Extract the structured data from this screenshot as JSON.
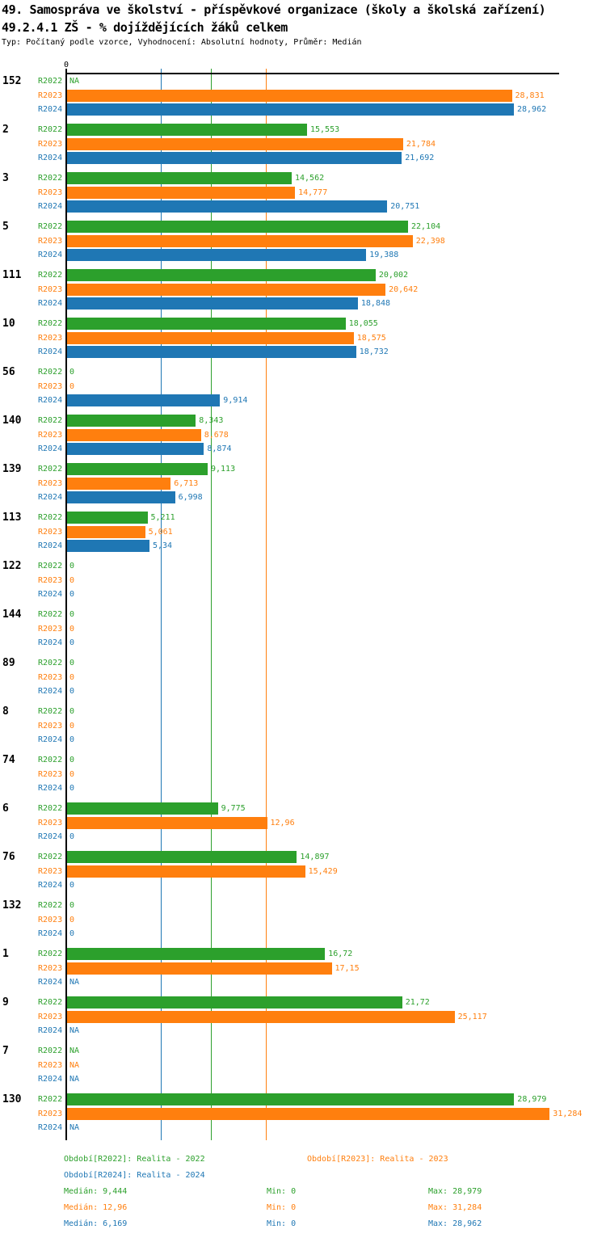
{
  "header": {
    "title": "49. Samospráva ve školství - příspěvkové organizace (školy a školská zařízení)",
    "subtitle": "49.2.4.1 ZŠ - % dojíždějících žáků celkem",
    "meta": "Typ: Počítaný podle vzorce, Vyhodnocení: Absolutní hodnoty, Průměr: Medián"
  },
  "axis": {
    "origin_label": "0"
  },
  "colors": {
    "green": "#2ca02c",
    "orange": "#ff7f0e",
    "blue": "#1f77b4",
    "axis": "#000000"
  },
  "legend": {
    "items": [
      {
        "label": "Období[R2022]: Realita - 2022",
        "color": "green"
      },
      {
        "label": "Období[R2023]: Realita - 2023",
        "color": "orange"
      },
      {
        "label": "Období[R2024]: Realita - 2024",
        "color": "blue"
      }
    ]
  },
  "stats": {
    "rows": [
      {
        "median": "Medián: 9,444",
        "min": "Min: 0",
        "max": "Max: 28,979",
        "color": "green"
      },
      {
        "median": "Medián: 12,96",
        "min": "Min: 0",
        "max": "Max: 31,284",
        "color": "orange"
      },
      {
        "median": "Medián: 6,169",
        "min": "Min: 0",
        "max": "Max: 28,962",
        "color": "blue"
      }
    ]
  },
  "chart_data": {
    "type": "bar",
    "orientation": "horizontal",
    "title": "49. Samospráva ve školství - příspěvkové organizace (školy a školská zařízení)",
    "subtitle": "49.2.4.1 ZŠ - % dojíždějících žáků celkem",
    "xlabel": "",
    "ylabel": "",
    "xlim": [
      0,
      32
    ],
    "grid": "median-lines-only",
    "legend_position": "bottom",
    "categories": [
      "152",
      "2",
      "3",
      "5",
      "111",
      "10",
      "56",
      "140",
      "139",
      "113",
      "122",
      "144",
      "89",
      "8",
      "74",
      "6",
      "76",
      "132",
      "1",
      "9",
      "7",
      "130"
    ],
    "series": [
      {
        "name": "R2022",
        "period": "Realita - 2022",
        "color": "#2ca02c",
        "values": [
          null,
          15.553,
          14.562,
          22.104,
          20.002,
          18.055,
          0,
          8.343,
          9.113,
          5.211,
          0,
          0,
          0,
          0,
          0,
          9.775,
          14.897,
          0,
          16.72,
          21.72,
          null,
          28.979
        ],
        "labels": [
          "NA",
          "15,553",
          "14,562",
          "22,104",
          "20,002",
          "18,055",
          "0",
          "8,343",
          "9,113",
          "5,211",
          "0",
          "0",
          "0",
          "0",
          "0",
          "9,775",
          "14,897",
          "0",
          "16,72",
          "21,72",
          "NA",
          "28,979"
        ],
        "median": 9.444,
        "min": 0,
        "max": 28.979
      },
      {
        "name": "R2023",
        "period": "Realita - 2023",
        "color": "#ff7f0e",
        "values": [
          28.831,
          21.784,
          14.777,
          22.398,
          20.642,
          18.575,
          0,
          8.678,
          6.713,
          5.061,
          0,
          0,
          0,
          0,
          0,
          12.96,
          15.429,
          0,
          17.15,
          25.117,
          null,
          31.284
        ],
        "labels": [
          "28,831",
          "21,784",
          "14,777",
          "22,398",
          "20,642",
          "18,575",
          "0",
          "8,678",
          "6,713",
          "5,061",
          "0",
          "0",
          "0",
          "0",
          "0",
          "12,96",
          "15,429",
          "0",
          "17,15",
          "25,117",
          "NA",
          "31,284"
        ],
        "median": 12.96,
        "min": 0,
        "max": 31.284
      },
      {
        "name": "R2024",
        "period": "Realita - 2024",
        "color": "#1f77b4",
        "values": [
          28.962,
          21.692,
          20.751,
          19.388,
          18.848,
          18.732,
          9.914,
          8.874,
          6.998,
          5.34,
          0,
          0,
          0,
          0,
          0,
          0,
          0,
          0,
          null,
          null,
          null,
          null
        ],
        "labels": [
          "28,962",
          "21,692",
          "20,751",
          "19,388",
          "18,848",
          "18,732",
          "9,914",
          "8,874",
          "6,998",
          "5,34",
          "0",
          "0",
          "0",
          "0",
          "0",
          "0",
          "0",
          "0",
          "NA",
          "NA",
          "NA",
          "NA"
        ],
        "median": 6.169,
        "min": 0,
        "max": 28.962
      }
    ],
    "median_lines": [
      {
        "series": "R2022",
        "value": 9.444
      },
      {
        "series": "R2023",
        "value": 12.96
      },
      {
        "series": "R2024",
        "value": 6.169
      }
    ]
  }
}
